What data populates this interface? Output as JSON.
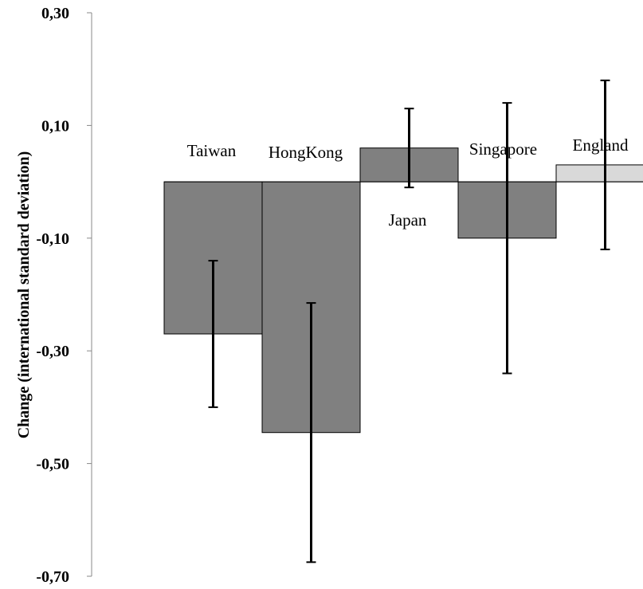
{
  "chart_data": {
    "type": "bar",
    "ylabel": "Change (international standard deviation)",
    "xlabel": "",
    "ylim": [
      -0.7,
      0.3
    ],
    "yticks": [
      "0,30",
      "0,10",
      "-0,10",
      "-0,30",
      "-0,50",
      "-0,70"
    ],
    "categories": [
      "Taiwan",
      "HongKong",
      "Japan",
      "Singapore",
      "England"
    ],
    "values": [
      -0.27,
      -0.445,
      0.06,
      -0.1,
      0.03
    ],
    "error_low": [
      -0.4,
      -0.675,
      -0.01,
      -0.34,
      -0.12
    ],
    "error_high": [
      -0.14,
      -0.215,
      0.13,
      0.14,
      0.18
    ],
    "colors": [
      "#808080",
      "#808080",
      "#808080",
      "#808080",
      "#d9d9d9"
    ],
    "grid": false
  }
}
